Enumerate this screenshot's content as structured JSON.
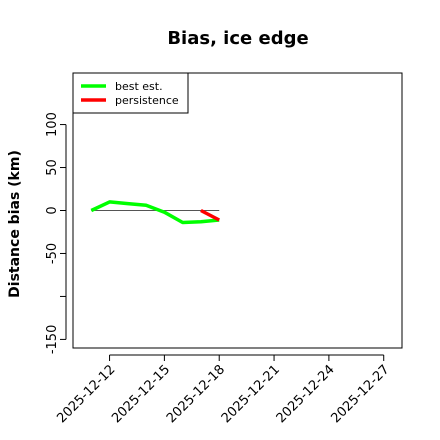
{
  "chart_data": {
    "type": "line",
    "title": "Bias, ice edge",
    "xlabel": "",
    "ylabel": "Distance bias (km)",
    "x_ticks": [
      "2025-12-12",
      "2025-12-15",
      "2025-12-18",
      "2025-12-21",
      "2025-12-24",
      "2025-12-27"
    ],
    "y_ticks": [
      -150,
      -50,
      0,
      50,
      100
    ],
    "xlim": [
      "2025-12-10",
      "2025-12-28"
    ],
    "ylim": [
      -160,
      160
    ],
    "grid": false,
    "legend_position": "top-left",
    "reference_line": {
      "y": 0,
      "x_from": "2025-12-11",
      "x_to": "2025-12-18"
    },
    "series": [
      {
        "name": "best est.",
        "color": "#00ff00",
        "x": [
          "2025-12-11",
          "2025-12-12",
          "2025-12-13",
          "2025-12-14",
          "2025-12-15",
          "2025-12-16",
          "2025-12-17",
          "2025-12-18"
        ],
        "y": [
          0,
          10,
          8,
          6,
          -2,
          -14,
          -13,
          -11
        ]
      },
      {
        "name": "persistence",
        "color": "#ff0000",
        "x": [
          "2025-12-17",
          "2025-12-18"
        ],
        "y": [
          0,
          -11
        ]
      }
    ]
  }
}
